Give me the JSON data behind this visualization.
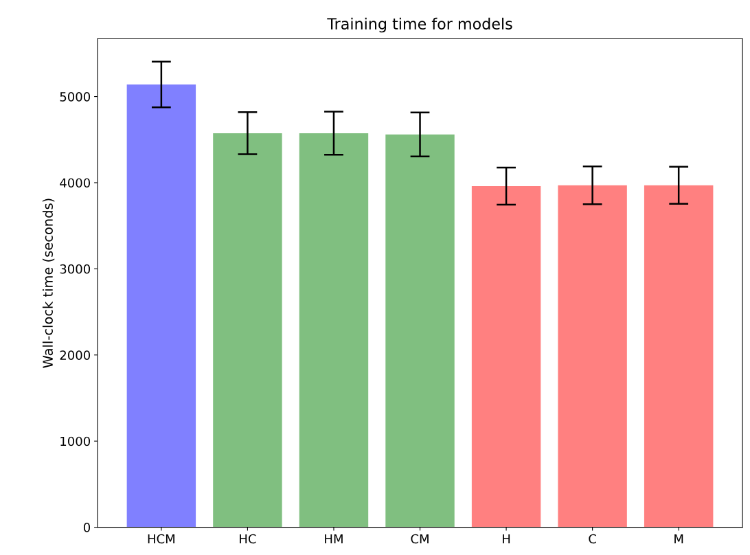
{
  "chart_data": {
    "type": "bar",
    "title": "Training time for models",
    "ylabel": "Wall-clock time (seconds)",
    "categories": [
      "HCM",
      "HC",
      "HM",
      "CM",
      "H",
      "C",
      "M"
    ],
    "values": [
      5140,
      4575,
      4575,
      4560,
      3960,
      3970,
      3970
    ],
    "errors": [
      265,
      245,
      250,
      255,
      215,
      220,
      215
    ],
    "colors": [
      "#8080ff",
      "#80bf80",
      "#80bf80",
      "#80bf80",
      "#ff8080",
      "#ff8080",
      "#ff8080"
    ],
    "ylim": [
      0,
      5670
    ],
    "yticks": [
      0,
      1000,
      2000,
      3000,
      4000,
      5000
    ],
    "grid": false,
    "legend": false
  }
}
